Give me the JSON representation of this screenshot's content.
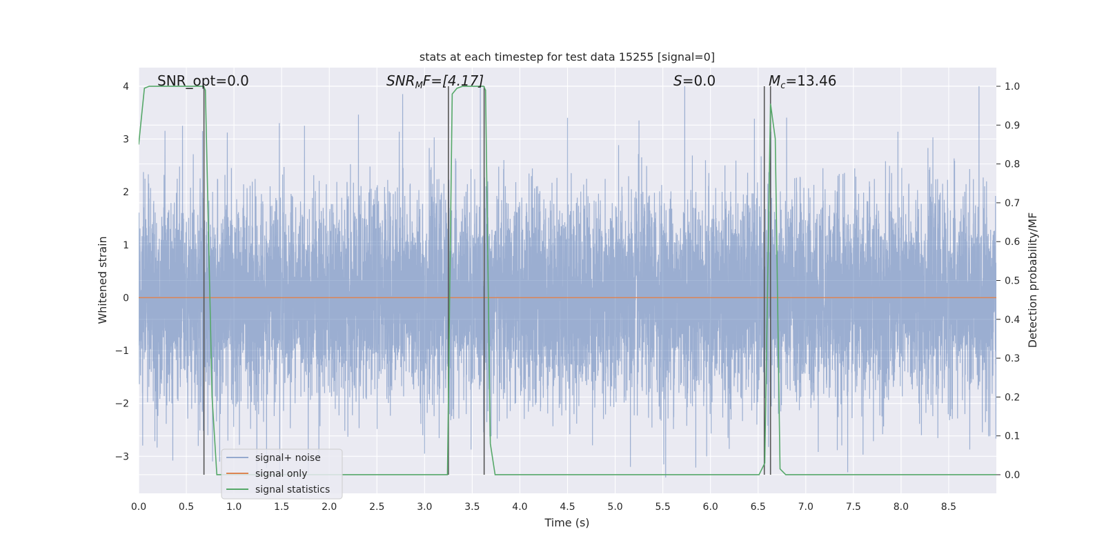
{
  "chart_data": {
    "type": "line",
    "title": "stats at each timestep for test data 15255 [signal=0]",
    "xlabel": "Time (s)",
    "ylabel": "Whitened strain",
    "y2label": "Detection probability/MF",
    "xlim": [
      0,
      9.0
    ],
    "ylim": [
      -3.7,
      4.35
    ],
    "y2lim": [
      -0.048,
      1.048
    ],
    "x_ticks": [
      0.0,
      0.5,
      1.0,
      1.5,
      2.0,
      2.5,
      3.0,
      3.5,
      4.0,
      4.5,
      5.0,
      5.5,
      6.0,
      6.5,
      7.0,
      7.5,
      8.0,
      8.5
    ],
    "x_tick_labels": [
      "0.0",
      "0.5",
      "1.0",
      "1.5",
      "2.0",
      "2.5",
      "3.0",
      "3.5",
      "4.0",
      "4.5",
      "5.0",
      "5.5",
      "6.0",
      "6.5",
      "7.0",
      "7.5",
      "8.0",
      "8.5"
    ],
    "y_ticks": [
      -3,
      -2,
      -1,
      0,
      1,
      2,
      3,
      4
    ],
    "y_tick_labels": [
      "−3",
      "−2",
      "−1",
      "0",
      "1",
      "2",
      "3",
      "4"
    ],
    "y2_ticks": [
      0.0,
      0.1,
      0.2,
      0.3,
      0.4,
      0.5,
      0.6,
      0.7,
      0.8,
      0.9,
      1.0
    ],
    "y2_tick_labels": [
      "0.0",
      "0.1",
      "0.2",
      "0.3",
      "0.4",
      "0.5",
      "0.6",
      "0.7",
      "0.8",
      "0.9",
      "1.0"
    ],
    "grid": true,
    "legend_placement": "lower-left",
    "series": [
      {
        "name": "signal+ noise",
        "color": "#4c72b0",
        "axis": "left",
        "sample_count": 9000,
        "range": [
          -3.4,
          4.0
        ],
        "peaks": [
          [
            0.46,
            3.25
          ],
          [
            0.67,
            3.15
          ],
          [
            1.74,
            3.25
          ],
          [
            2.77,
            3.85
          ],
          [
            4.5,
            3.4
          ],
          [
            5.25,
            3.35
          ],
          [
            5.73,
            4.0
          ],
          [
            5.53,
            -3.4
          ],
          [
            5.96,
            -3.0
          ],
          [
            0.85,
            -3.1
          ],
          [
            1.48,
            -3.3
          ],
          [
            3.0,
            -2.95
          ],
          [
            5.16,
            -3.2
          ],
          [
            7.44,
            -3.3
          ]
        ]
      },
      {
        "name": "signal only",
        "color": "#dd8452",
        "axis": "left",
        "x": [
          0.0,
          9.0
        ],
        "y": [
          0.0,
          0.0
        ]
      },
      {
        "name": "signal statistics",
        "color": "#55a868",
        "axis": "right",
        "x": [
          0.0,
          0.06,
          0.11,
          0.68,
          0.7,
          0.77,
          0.82,
          3.24,
          3.29,
          3.34,
          3.4,
          3.62,
          3.64,
          3.69,
          3.74,
          6.51,
          6.57,
          6.63,
          6.68,
          6.73,
          6.79,
          9.0
        ],
        "y": [
          0.85,
          0.995,
          1.0,
          1.0,
          0.99,
          0.2,
          0.0,
          0.0,
          0.98,
          0.995,
          1.0,
          1.0,
          0.99,
          0.08,
          0.0,
          0.0,
          0.03,
          0.955,
          0.865,
          0.015,
          0.0,
          0.0
        ]
      }
    ],
    "vlines": [
      {
        "x": 0.685,
        "color": "#555555"
      },
      {
        "x": 3.25,
        "color": "#555555"
      },
      {
        "x": 3.625,
        "color": "#555555"
      },
      {
        "x": 6.565,
        "color": "#555555"
      },
      {
        "x": 6.63,
        "color": "#555555"
      }
    ],
    "annotations": {
      "snr_opt": "SNR_opt=0.0",
      "snr_mf_main": "SNR",
      "snr_mf_sub": "M",
      "snr_mf_rest": "F=[4.17]",
      "s_main": "S",
      "s_rest": "=0.0",
      "mc_main": "M",
      "mc_sub": "c",
      "mc_rest": "=13.46"
    },
    "legend": [
      "signal+ noise",
      "signal only",
      "signal statistics"
    ],
    "colors": {
      "plot_bg": "#eaeaf2",
      "grid": "#ffffff",
      "text": "#262626"
    }
  }
}
